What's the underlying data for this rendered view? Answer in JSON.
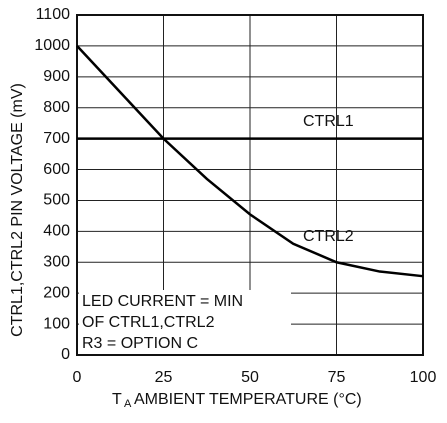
{
  "chart_data": {
    "type": "line",
    "xlabel_sub": "A",
    "xlabel": "AMBIENT TEMPERATURE (°C)",
    "ylabel": "CTRL1,CTRL2 PIN VOLTAGE (mV)",
    "x": [
      0,
      12.5,
      25,
      37.5,
      50,
      62.5,
      75,
      87.5,
      100
    ],
    "series": [
      {
        "name": "CTRL1",
        "color": "#000000",
        "values": [
          700,
          700,
          700,
          700,
          700,
          700,
          700,
          700,
          700
        ]
      },
      {
        "name": "CTRL2",
        "color": "#000000",
        "values": [
          1000,
          850,
          700,
          570,
          455,
          360,
          300,
          270,
          255
        ]
      }
    ],
    "xlim": [
      0,
      100
    ],
    "xticks": [
      0,
      25,
      50,
      75,
      100
    ],
    "ylim": [
      0,
      1100
    ],
    "yticks": [
      0,
      100,
      200,
      300,
      400,
      500,
      600,
      700,
      800,
      900,
      1000,
      1100
    ],
    "grid": true,
    "annotation": [
      "LED CURRENT = MIN",
      "OF CTRL1,CTRL2",
      "R3 = OPTION C"
    ]
  }
}
